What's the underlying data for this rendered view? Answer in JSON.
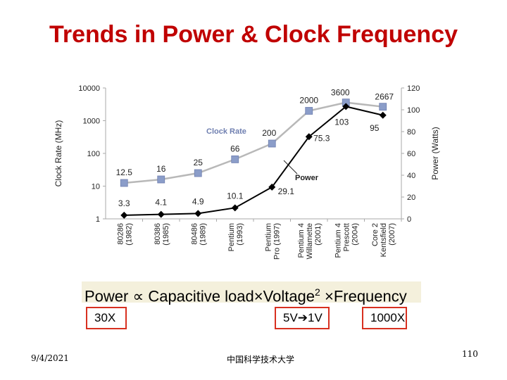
{
  "title": "Trends in Power & Clock Frequency",
  "chart_data": {
    "type": "line",
    "categories": [
      [
        "80286",
        "(1982)"
      ],
      [
        "80386",
        "(1985)"
      ],
      [
        "80486",
        "(1989)"
      ],
      [
        "Pentium",
        "(1993)"
      ],
      [
        "Pentium",
        "Pro (1997)"
      ],
      [
        "Pentium 4",
        "Willamette",
        "(2001)"
      ],
      [
        "Pentium 4",
        "Prescott",
        "(2004)"
      ],
      [
        "Core 2",
        "Kentsfield",
        "(2007)"
      ]
    ],
    "ylabel_left": "Clock Rate (MHz)",
    "ylabel_right": "Power (Watts)",
    "yleft_ticks": [
      "10000",
      "1000",
      "100",
      "10",
      "1"
    ],
    "yright_ticks": [
      "120",
      "100",
      "80",
      "60",
      "40",
      "20",
      "0"
    ],
    "yleft_scale": "log",
    "yleft_lim": [
      1,
      10000
    ],
    "yright_lim": [
      0,
      120
    ],
    "series": [
      {
        "name": "Clock Rate",
        "axis": "left",
        "color": "#8b9dc9",
        "marker": "square",
        "values": [
          12.5,
          16,
          25,
          66,
          200,
          2000,
          3600,
          2667
        ],
        "labels": [
          "12.5",
          "16",
          "25",
          "66",
          "200",
          "2000",
          "3600",
          "2667"
        ]
      },
      {
        "name": "Power",
        "axis": "right",
        "color": "#000000",
        "marker": "diamond",
        "values": [
          3.3,
          4.1,
          4.9,
          10.1,
          29.1,
          75.3,
          103,
          95
        ],
        "labels": [
          "3.3",
          "4.1",
          "4.9",
          "10.1",
          "29.1",
          "75.3",
          "103",
          "95"
        ]
      }
    ]
  },
  "formula": {
    "power": "Power",
    "propto": "∝",
    "cap": "Capacitive load",
    "times1": "×",
    "voltage": "Voltage",
    "exp": "2",
    "times2": "×",
    "freq": "Frequency"
  },
  "boxes": {
    "cap": "30X",
    "voltage": "5V➔1V",
    "freq": "1000X"
  },
  "footer": {
    "date": "9/4/2021",
    "center": "中国科学技术大学",
    "page": "110"
  }
}
